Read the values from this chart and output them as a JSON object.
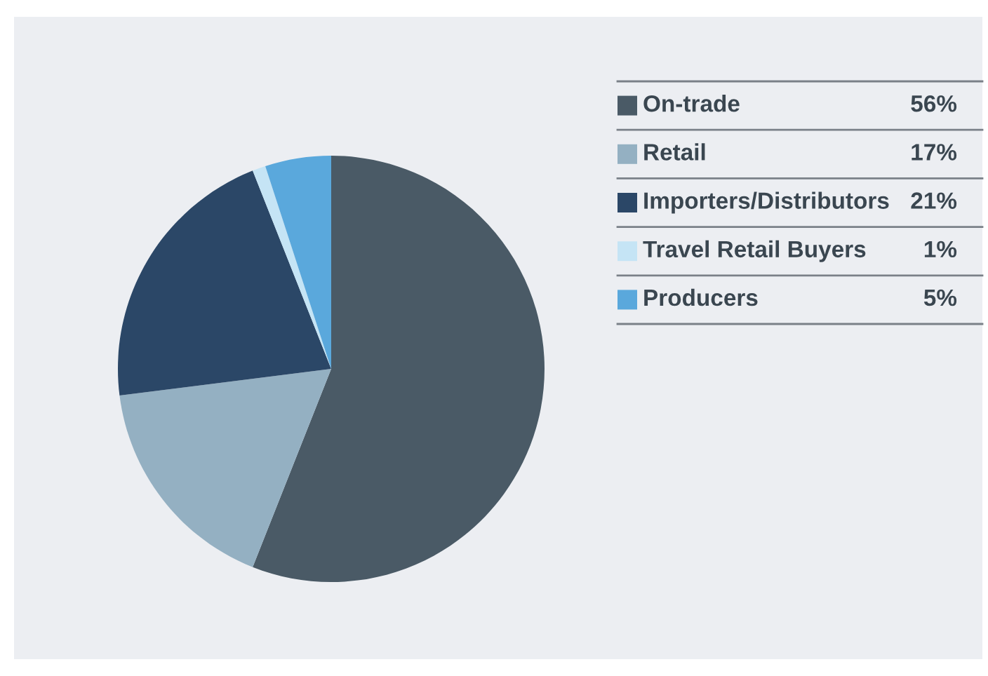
{
  "chart_data": {
    "type": "pie",
    "categories": [
      "On-trade",
      "Retail",
      "Importers/Distributors",
      "Travel Retail Buyers",
      "Producers"
    ],
    "values": [
      56,
      17,
      21,
      1,
      5
    ],
    "colors": [
      "#4a5a66",
      "#94b0c2",
      "#2b4767",
      "#c5e4f5",
      "#5aa8dc"
    ],
    "value_labels": [
      "56%",
      "17%",
      "21%",
      "1%",
      "5%"
    ],
    "legend": "right"
  }
}
